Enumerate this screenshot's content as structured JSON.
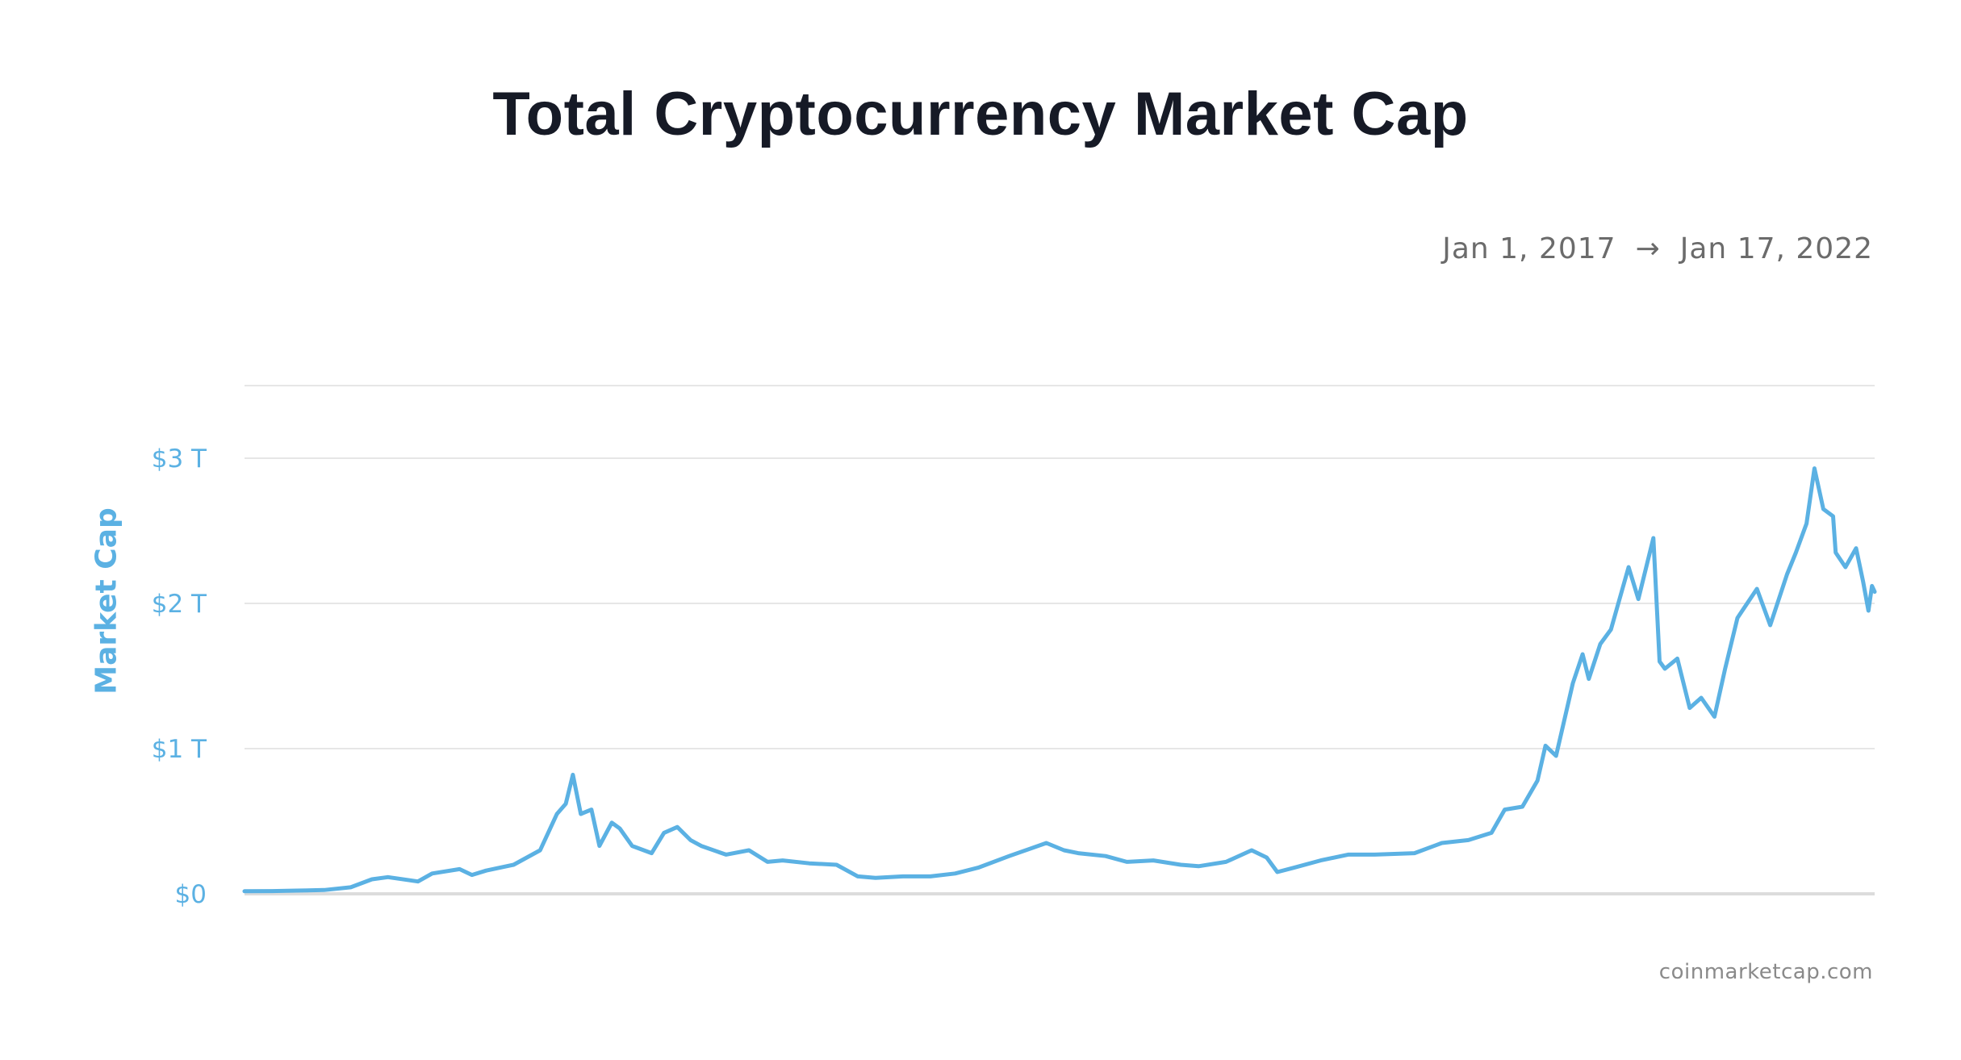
{
  "chart_data": {
    "type": "line",
    "title": "Total Cryptocurrency Market Cap",
    "date_range": {
      "start": "Jan 1, 2017",
      "arrow": "→",
      "end": "Jan 17, 2022"
    },
    "ylabel": "Market Cap",
    "source": "coinmarketcap.com",
    "x_unit": "date",
    "ylim": [
      0,
      3.5
    ],
    "y_unit": "trillion USD",
    "yticks": [
      {
        "value": 0,
        "label": "$0"
      },
      {
        "value": 1,
        "label": "$1 T"
      },
      {
        "value": 2,
        "label": "$2 T"
      },
      {
        "value": 3,
        "label": "$3 T"
      }
    ],
    "grid": true,
    "line_color": "#5bb1e3",
    "series": [
      {
        "x": [
          "2017-01-01",
          "2017-02-01",
          "2017-03-01",
          "2017-04-01",
          "2017-05-01",
          "2017-05-25",
          "2017-06-12",
          "2017-07-16",
          "2017-08-01",
          "2017-09-01",
          "2017-09-15",
          "2017-10-01",
          "2017-11-01",
          "2017-12-01",
          "2017-12-20",
          "2017-12-30",
          "2018-01-07",
          "2018-01-16",
          "2018-01-28",
          "2018-02-06",
          "2018-02-20",
          "2018-03-01",
          "2018-03-15",
          "2018-04-06",
          "2018-04-20",
          "2018-05-05",
          "2018-05-20",
          "2018-06-01",
          "2018-06-29",
          "2018-07-25",
          "2018-08-15",
          "2018-09-01",
          "2018-10-01",
          "2018-11-01",
          "2018-11-25",
          "2018-12-15",
          "2019-01-15",
          "2019-02-15",
          "2019-03-15",
          "2019-04-10",
          "2019-05-15",
          "2019-06-26",
          "2019-07-16",
          "2019-08-01",
          "2019-09-01",
          "2019-09-25",
          "2019-10-25",
          "2019-11-25",
          "2019-12-15",
          "2020-01-15",
          "2020-02-13",
          "2020-03-01",
          "2020-03-13",
          "2020-04-01",
          "2020-05-01",
          "2020-06-01",
          "2020-07-01",
          "2020-08-15",
          "2020-09-15",
          "2020-10-15",
          "2020-11-10",
          "2020-11-25",
          "2020-12-15",
          "2021-01-01",
          "2021-01-10",
          "2021-01-22",
          "2021-02-10",
          "2021-02-21",
          "2021-02-28",
          "2021-03-13",
          "2021-03-25",
          "2021-04-14",
          "2021-04-25",
          "2021-05-12",
          "2021-05-19",
          "2021-05-25",
          "2021-06-08",
          "2021-06-22",
          "2021-07-05",
          "2021-07-20",
          "2021-08-01",
          "2021-08-15",
          "2021-09-06",
          "2021-09-21",
          "2021-10-10",
          "2021-10-20",
          "2021-11-01",
          "2021-11-10",
          "2021-11-20",
          "2021-12-01",
          "2021-12-04",
          "2021-12-15",
          "2021-12-27",
          "2022-01-04",
          "2022-01-10",
          "2022-01-14",
          "2022-01-17"
        ],
        "y": [
          0.018,
          0.019,
          0.022,
          0.026,
          0.045,
          0.1,
          0.115,
          0.085,
          0.14,
          0.17,
          0.13,
          0.16,
          0.2,
          0.3,
          0.55,
          0.62,
          0.82,
          0.55,
          0.58,
          0.33,
          0.49,
          0.45,
          0.33,
          0.28,
          0.42,
          0.46,
          0.37,
          0.33,
          0.27,
          0.3,
          0.22,
          0.23,
          0.21,
          0.2,
          0.12,
          0.11,
          0.12,
          0.12,
          0.14,
          0.18,
          0.26,
          0.35,
          0.3,
          0.28,
          0.26,
          0.22,
          0.23,
          0.2,
          0.19,
          0.22,
          0.3,
          0.25,
          0.15,
          0.18,
          0.23,
          0.27,
          0.27,
          0.28,
          0.35,
          0.37,
          0.42,
          0.58,
          0.6,
          0.78,
          1.02,
          0.95,
          1.45,
          1.65,
          1.48,
          1.72,
          1.82,
          2.25,
          2.03,
          2.45,
          1.6,
          1.55,
          1.62,
          1.28,
          1.35,
          1.22,
          1.55,
          1.9,
          2.1,
          1.85,
          2.2,
          2.35,
          2.55,
          2.93,
          2.65,
          2.6,
          2.35,
          2.25,
          2.38,
          2.15,
          1.95,
          2.12,
          2.08
        ]
      }
    ]
  }
}
